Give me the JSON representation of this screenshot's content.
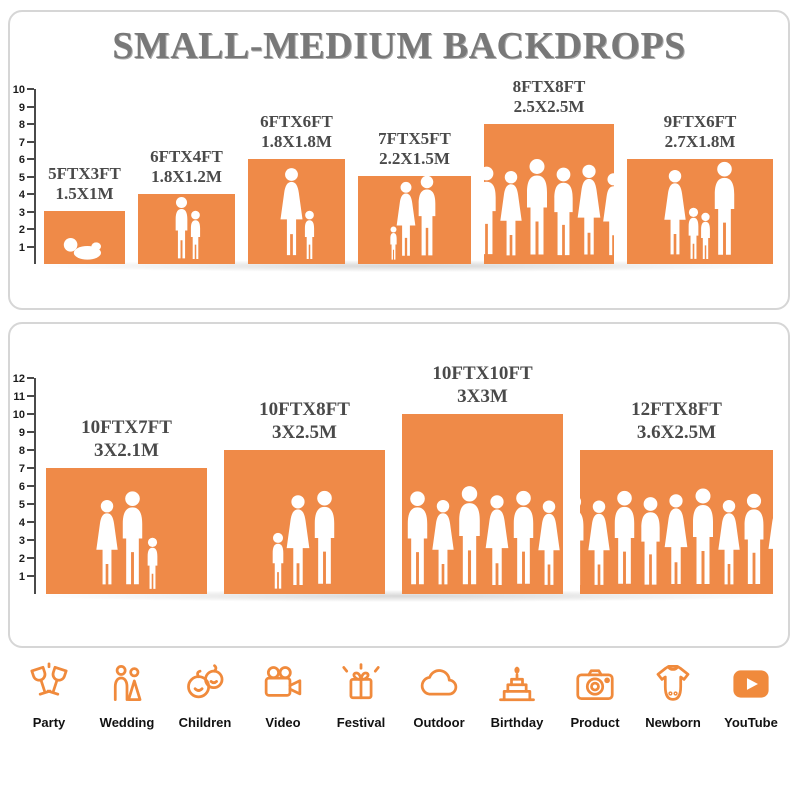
{
  "title": "SMALL-MEDIUM BACKDROPS",
  "colors": {
    "bar_orange": "#EF8A48",
    "icon_orange": "#F08A3C",
    "title_gray": "#787878",
    "label_gray": "#4A4A4A"
  },
  "chart_data": [
    {
      "type": "bar",
      "panel": "top",
      "title": "SMALL-MEDIUM BACKDROPS",
      "ylabel": "feet ruler",
      "ylim": [
        0,
        10
      ],
      "yticks": [
        1,
        2,
        3,
        4,
        5,
        6,
        7,
        8,
        9,
        10
      ],
      "categories": [
        "5FTX3FT",
        "6FTX4FT",
        "6FTX6FT",
        "7FTX5FT",
        "8FTX8FT",
        "9FTX6FT"
      ],
      "metric_labels": [
        "1.5X1M",
        "1.8X1.2M",
        "1.8X1.8M",
        "2.2X1.5M",
        "2.5X2.5M",
        "2.7X1.8M"
      ],
      "series": [
        {
          "name": "width_ft",
          "values": [
            5,
            6,
            6,
            7,
            8,
            9
          ]
        },
        {
          "name": "height_ft",
          "values": [
            3,
            4,
            6,
            5,
            8,
            6
          ]
        }
      ],
      "items": [
        {
          "size": "5FTX3FT",
          "metric": "1.5X1M",
          "width_ft": 5,
          "height_ft": 3,
          "figures": [
            {
              "type": "baby",
              "h": 1.5
            }
          ]
        },
        {
          "size": "6FTX4FT",
          "metric": "1.8X1.2M",
          "width_ft": 6,
          "height_ft": 4,
          "figures": [
            {
              "type": "child",
              "h": 3.7
            },
            {
              "type": "child",
              "h": 2.9
            }
          ]
        },
        {
          "size": "6FTX6FT",
          "metric": "1.8X1.8M",
          "width_ft": 6,
          "height_ft": 6,
          "figures": [
            {
              "type": "woman",
              "h": 5.5
            },
            {
              "type": "child",
              "h": 2.9
            }
          ]
        },
        {
          "size": "7FTX5FT",
          "metric": "2.2X1.5M",
          "width_ft": 7,
          "height_ft": 5,
          "figures": [
            {
              "type": "child",
              "h": 2.0
            },
            {
              "type": "woman",
              "h": 4.7
            },
            {
              "type": "man",
              "h": 5.0
            }
          ]
        },
        {
          "size": "8FTX8FT",
          "metric": "2.5X2.5M",
          "width_ft": 8,
          "height_ft": 8,
          "figures": [
            {
              "type": "man",
              "h": 5.6
            },
            {
              "type": "woman",
              "h": 5.3
            },
            {
              "type": "man",
              "h": 6.0
            },
            {
              "type": "man",
              "h": 5.5
            },
            {
              "type": "woman",
              "h": 5.7
            },
            {
              "type": "woman",
              "h": 5.2
            }
          ]
        },
        {
          "size": "9FTX6FT",
          "metric": "2.7X1.8M",
          "width_ft": 9,
          "height_ft": 6,
          "figures": [
            {
              "type": "woman",
              "h": 5.4
            },
            {
              "type": "child",
              "h": 3.1
            },
            {
              "type": "child",
              "h": 2.8
            },
            {
              "type": "man",
              "h": 5.8
            }
          ]
        }
      ]
    },
    {
      "type": "bar",
      "panel": "bottom",
      "ylabel": "feet ruler",
      "ylim": [
        0,
        12
      ],
      "yticks": [
        1,
        2,
        3,
        4,
        5,
        6,
        7,
        8,
        9,
        10,
        11,
        12
      ],
      "categories": [
        "10FTX7FT",
        "10FTX8FT",
        "10FTX10FT",
        "12FTX8FT"
      ],
      "metric_labels": [
        "3X2.1M",
        "3X2.5M",
        "3X3M",
        "3.6X2.5M"
      ],
      "series": [
        {
          "name": "width_ft",
          "values": [
            10,
            10,
            10,
            12
          ]
        },
        {
          "name": "height_ft",
          "values": [
            7,
            8,
            10,
            8
          ]
        }
      ],
      "items": [
        {
          "size": "10FTX7FT",
          "metric": "3X2.1M",
          "width_ft": 10,
          "height_ft": 7,
          "figures": [
            {
              "type": "woman",
              "h": 5.3
            },
            {
              "type": "man",
              "h": 5.7
            },
            {
              "type": "child",
              "h": 3.0
            }
          ]
        },
        {
          "size": "10FTX8FT",
          "metric": "3X2.5M",
          "width_ft": 10,
          "height_ft": 8,
          "figures": [
            {
              "type": "child",
              "h": 3.3
            },
            {
              "type": "woman",
              "h": 5.5
            },
            {
              "type": "man",
              "h": 5.8
            }
          ]
        },
        {
          "size": "10FTX10FT",
          "metric": "3X3M",
          "width_ft": 10,
          "height_ft": 10,
          "figures": [
            {
              "type": "man",
              "h": 5.7
            },
            {
              "type": "woman",
              "h": 5.3
            },
            {
              "type": "man",
              "h": 6.0
            },
            {
              "type": "woman",
              "h": 5.5
            },
            {
              "type": "man",
              "h": 5.8
            },
            {
              "type": "woman",
              "h": 5.2
            }
          ]
        },
        {
          "size": "12FTX8FT",
          "metric": "3.6X2.5M",
          "width_ft": 12,
          "height_ft": 8,
          "figures": [
            {
              "type": "man",
              "h": 5.5
            },
            {
              "type": "woman",
              "h": 5.2
            },
            {
              "type": "man",
              "h": 5.8
            },
            {
              "type": "man",
              "h": 5.4
            },
            {
              "type": "woman",
              "h": 5.6
            },
            {
              "type": "man",
              "h": 5.9
            },
            {
              "type": "woman",
              "h": 5.3
            },
            {
              "type": "man",
              "h": 5.6
            },
            {
              "type": "woman",
              "h": 5.4
            }
          ]
        }
      ]
    }
  ],
  "footer_categories": [
    {
      "label": "Party",
      "icon": "party-icon"
    },
    {
      "label": "Wedding",
      "icon": "wedding-icon"
    },
    {
      "label": "Children",
      "icon": "children-icon"
    },
    {
      "label": "Video",
      "icon": "video-icon"
    },
    {
      "label": "Festival",
      "icon": "festival-icon"
    },
    {
      "label": "Outdoor",
      "icon": "outdoor-icon"
    },
    {
      "label": "Birthday",
      "icon": "birthday-icon"
    },
    {
      "label": "Product",
      "icon": "product-icon"
    },
    {
      "label": "Newborn",
      "icon": "newborn-icon"
    },
    {
      "label": "YouTube",
      "icon": "youtube-icon"
    }
  ]
}
